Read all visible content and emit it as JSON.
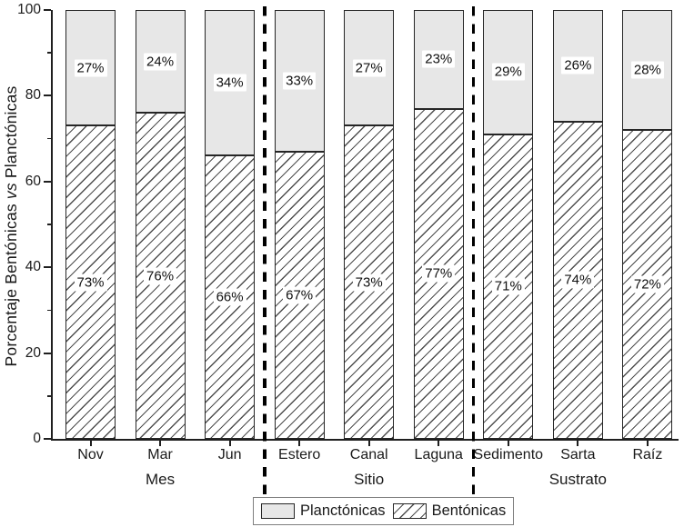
{
  "figure": {
    "y_axis_title": {
      "pre": "Porcentaje Bentónicas ",
      "vs": "vs",
      "post": " Planctónicas"
    }
  },
  "chart_data": {
    "type": "bar",
    "stacked": true,
    "orientation": "vertical",
    "ylim": [
      0,
      100
    ],
    "yticks_major": [
      0,
      20,
      40,
      60,
      80,
      100
    ],
    "yticks_minor": [
      10,
      30,
      50,
      70,
      90
    ],
    "grid": false,
    "categories": [
      "Nov",
      "Mar",
      "Jun",
      "Estero",
      "Canal",
      "Laguna",
      "Sedimento",
      "Sarta",
      "Raíz"
    ],
    "groups": [
      {
        "label": "Mes",
        "categories": [
          "Nov",
          "Mar",
          "Jun"
        ]
      },
      {
        "label": "Sitio",
        "categories": [
          "Estero",
          "Canal",
          "Laguna"
        ]
      },
      {
        "label": "Sustrato",
        "categories": [
          "Sedimento",
          "Sarta",
          "Raíz"
        ]
      }
    ],
    "series": [
      {
        "name": "Bentónicas",
        "pattern": "diagonal-hatch",
        "fill": "#ffffff",
        "values": [
          73,
          76,
          66,
          67,
          73,
          77,
          71,
          74,
          72
        ]
      },
      {
        "name": "Planctónicas",
        "pattern": "solid",
        "fill": "#e7e7e7",
        "values": [
          27,
          24,
          34,
          33,
          27,
          23,
          29,
          26,
          28
        ]
      }
    ],
    "value_label_suffix": "%",
    "legend": {
      "position": "bottom-center",
      "items": [
        {
          "label": "Planctónicas",
          "pattern": "solid"
        },
        {
          "label": "Bentónicas",
          "pattern": "diagonal-hatch"
        }
      ]
    },
    "colors": {
      "bar_fill_gray": "#e7e7e7",
      "hatch_line": "#4d4d4d",
      "bar_border": "#262626",
      "axis": "#1f1f1f",
      "divider": "#000000"
    }
  }
}
